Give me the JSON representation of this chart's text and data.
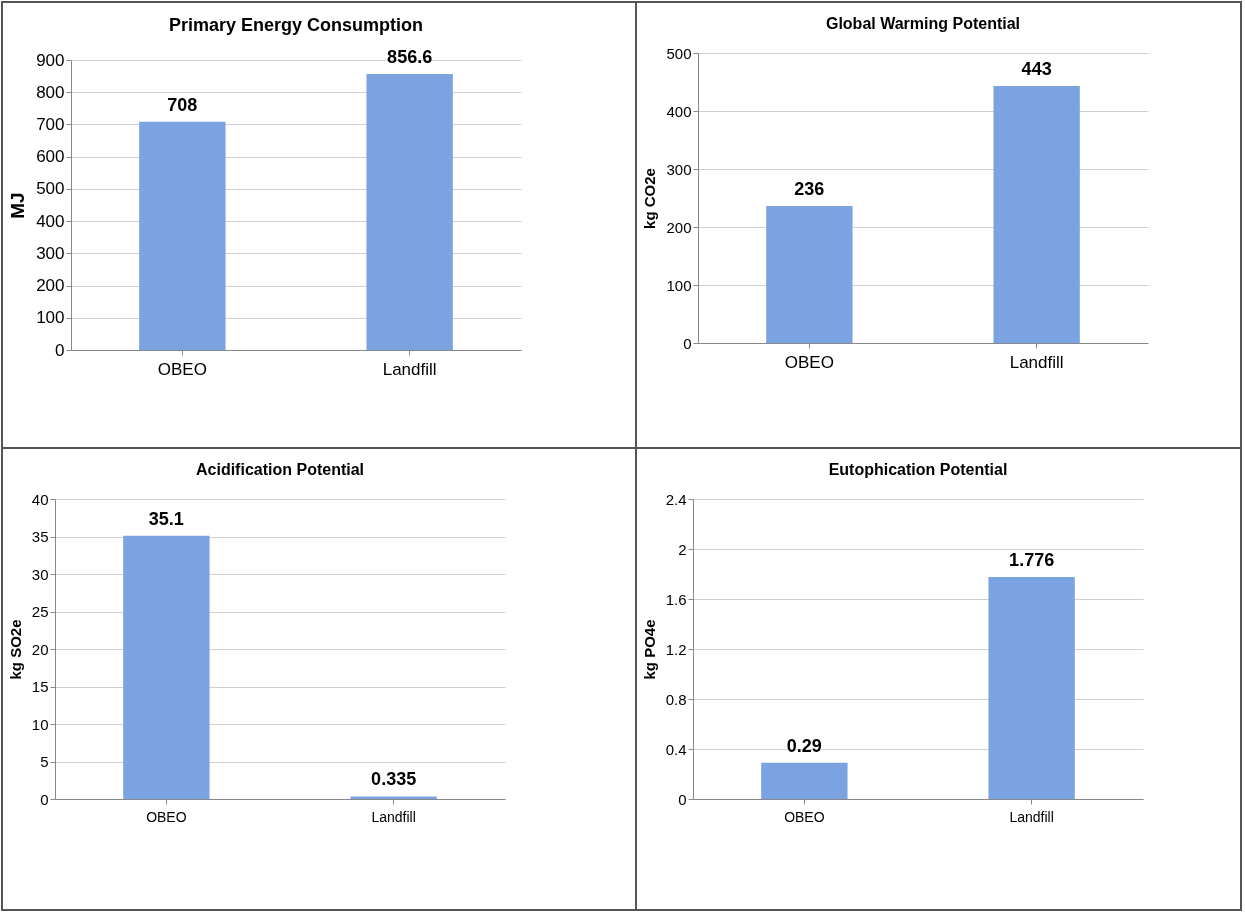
{
  "chart_data": [
    {
      "type": "bar",
      "title": "Primary Energy Consumption",
      "ylabel": "MJ",
      "categories": [
        "OBEO",
        "Landfill"
      ],
      "values": [
        708,
        856.6
      ],
      "color": "#7ba3e2",
      "ylim": [
        0,
        900
      ],
      "yticks": [
        0,
        100,
        200,
        300,
        400,
        500,
        600,
        700,
        800,
        900
      ],
      "grid": "y",
      "data_labels": true
    },
    {
      "type": "bar",
      "title": "Global Warming Potential",
      "ylabel": "kg CO2e",
      "categories": [
        "OBEO",
        "Landfill"
      ],
      "values": [
        236,
        443
      ],
      "color": "#7ba3e2",
      "ylim": [
        0,
        500
      ],
      "yticks": [
        0,
        100,
        200,
        300,
        400,
        500
      ],
      "grid": "y",
      "data_labels": true
    },
    {
      "type": "bar",
      "title": "Acidification Potential",
      "ylabel": "kg SO2e",
      "categories": [
        "OBEO",
        "Landfill"
      ],
      "values": [
        35.1,
        0.335
      ],
      "color": "#7ba3e2",
      "ylim": [
        0,
        40
      ],
      "yticks": [
        0,
        5,
        10,
        15,
        20,
        25,
        30,
        35,
        40
      ],
      "grid": "y",
      "data_labels": true
    },
    {
      "type": "bar",
      "title": "Eutophication Potential",
      "ylabel": "kg PO4e",
      "categories": [
        "OBEO",
        "Landfill"
      ],
      "values": [
        0.29,
        1.776
      ],
      "color": "#7ba3e2",
      "ylim": [
        0,
        2.4
      ],
      "yticks": [
        {
          "value": 0,
          "label": "0"
        },
        0.4,
        0.8,
        1.2,
        1.6,
        {
          "value": 2,
          "label": "2"
        },
        2.4
      ],
      "grid": "y",
      "data_labels": true
    }
  ]
}
